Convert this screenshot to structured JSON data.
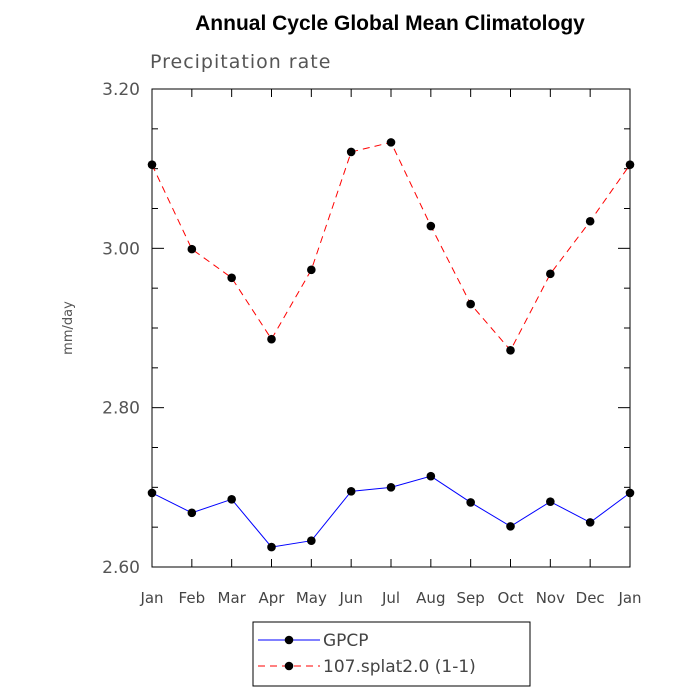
{
  "chart_data": {
    "type": "line",
    "title": "Annual Cycle Global Mean Climatology",
    "subtitle": "Precipitation rate",
    "xlabel": "",
    "ylabel": "mm/day",
    "categories": [
      "Jan",
      "Feb",
      "Mar",
      "Apr",
      "May",
      "Jun",
      "Jul",
      "Aug",
      "Sep",
      "Oct",
      "Nov",
      "Dec",
      "Jan"
    ],
    "ylim": [
      2.6,
      3.2
    ],
    "yticks": [
      "2.60",
      "2.80",
      "3.00",
      "3.20"
    ],
    "ytick_values": [
      2.6,
      2.8,
      3.0,
      3.2
    ],
    "series": [
      {
        "name": "GPCP",
        "color": "#0000ff",
        "dash": "solid",
        "values": [
          2.693,
          2.668,
          2.685,
          2.625,
          2.633,
          2.695,
          2.7,
          2.714,
          2.681,
          2.651,
          2.682,
          2.656,
          2.693
        ]
      },
      {
        "name": "107.splat2.0 (1-1)",
        "color": "#ff0000",
        "dash": "dashed",
        "values": [
          3.105,
          2.999,
          2.963,
          2.886,
          2.973,
          3.121,
          3.133,
          3.028,
          2.93,
          2.872,
          2.968,
          3.034,
          3.105
        ]
      }
    ]
  }
}
